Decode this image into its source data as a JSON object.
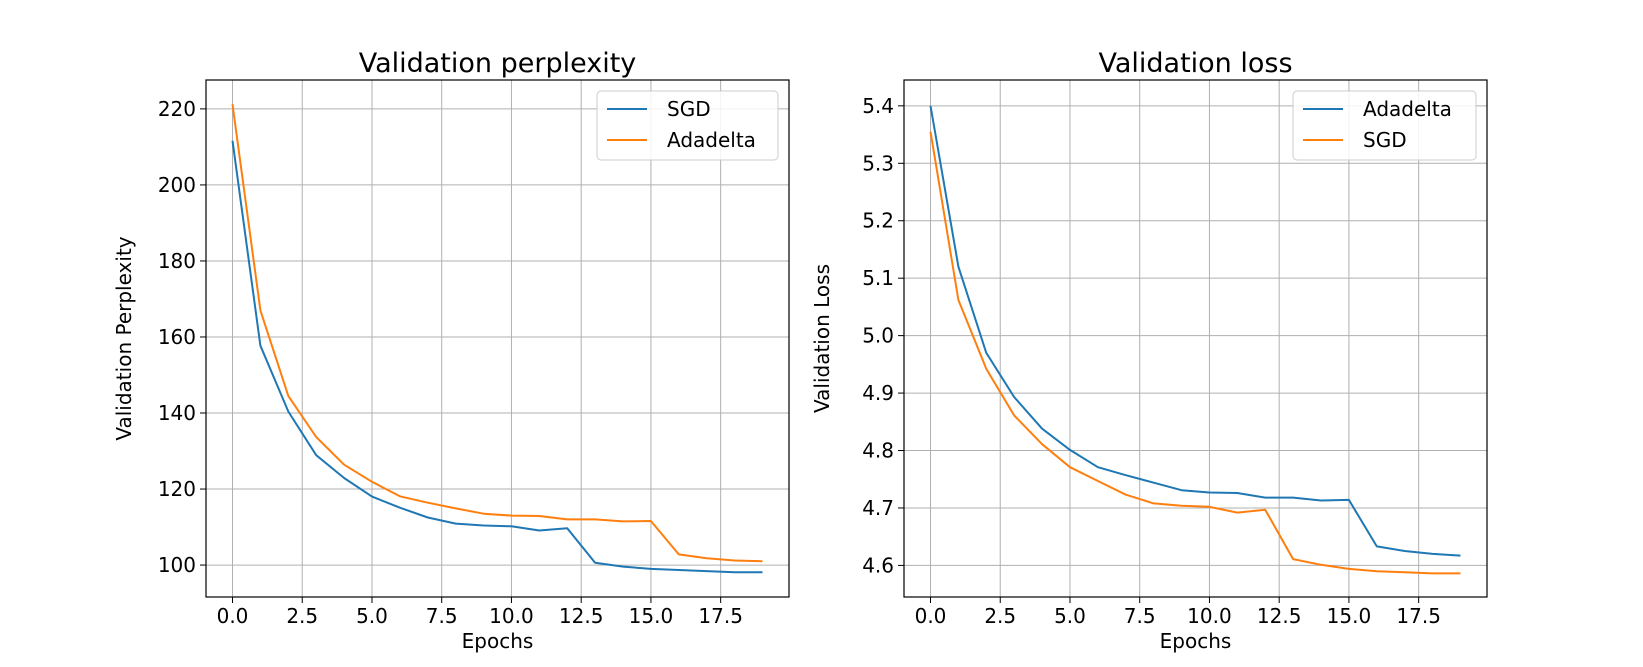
{
  "chart_data": [
    {
      "type": "line",
      "title": "Validation perplexity",
      "xlabel": "Epochs",
      "ylabel": "Validation Perplexity",
      "xlim": [
        -0.95,
        19.95
      ],
      "ylim": [
        91.6,
        227.6
      ],
      "xticks": [
        0.0,
        2.5,
        5.0,
        7.5,
        10.0,
        12.5,
        15.0,
        17.5
      ],
      "xtick_labels": [
        "0.0",
        "2.5",
        "5.0",
        "7.5",
        "10.0",
        "12.5",
        "15.0",
        "17.5"
      ],
      "yticks": [
        100,
        120,
        140,
        160,
        180,
        200,
        220
      ],
      "ytick_labels": [
        "100",
        "120",
        "140",
        "160",
        "180",
        "200",
        "220"
      ],
      "grid": true,
      "legend_position": "top-right",
      "x": [
        0,
        1,
        2,
        3,
        4,
        5,
        6,
        7,
        8,
        9,
        10,
        11,
        12,
        13,
        14,
        15,
        16,
        17,
        18,
        19
      ],
      "series": [
        {
          "name": "SGD",
          "color": "#1f77b4",
          "values": [
            211.6,
            157.7,
            140.4,
            128.9,
            122.9,
            118.0,
            115.1,
            112.5,
            110.9,
            110.4,
            110.2,
            109.1,
            109.7,
            100.6,
            99.6,
            99.0,
            98.7,
            98.4,
            98.1,
            98.1
          ]
        },
        {
          "name": "Adadelta",
          "color": "#ff7f0e",
          "values": [
            221.2,
            167.0,
            144.5,
            133.7,
            126.4,
            121.9,
            118.1,
            116.4,
            114.9,
            113.5,
            113.0,
            112.9,
            112.0,
            112.0,
            111.5,
            111.6,
            102.8,
            101.8,
            101.2,
            101.0
          ]
        }
      ]
    },
    {
      "type": "line",
      "title": "Validation loss",
      "xlabel": "Epochs",
      "ylabel": "Validation Loss",
      "xlim": [
        -0.95,
        19.95
      ],
      "ylim": [
        4.545,
        5.445
      ],
      "xticks": [
        0.0,
        2.5,
        5.0,
        7.5,
        10.0,
        12.5,
        15.0,
        17.5
      ],
      "xtick_labels": [
        "0.0",
        "2.5",
        "5.0",
        "7.5",
        "10.0",
        "12.5",
        "15.0",
        "17.5"
      ],
      "yticks": [
        4.6,
        4.7,
        4.8,
        4.9,
        5.0,
        5.1,
        5.2,
        5.3,
        5.4
      ],
      "ytick_labels": [
        "4.6",
        "4.7",
        "4.8",
        "4.9",
        "5.0",
        "5.1",
        "5.2",
        "5.3",
        "5.4"
      ],
      "grid": true,
      "legend_position": "top-right",
      "x": [
        0,
        1,
        2,
        3,
        4,
        5,
        6,
        7,
        8,
        9,
        10,
        11,
        12,
        13,
        14,
        15,
        16,
        17,
        18,
        19
      ],
      "series": [
        {
          "name": "Adadelta",
          "color": "#1f77b4",
          "values": [
            5.4,
            5.12,
            4.97,
            4.893,
            4.838,
            4.801,
            4.771,
            4.757,
            4.744,
            4.731,
            4.727,
            4.726,
            4.718,
            4.718,
            4.713,
            4.714,
            4.633,
            4.625,
            4.62,
            4.617
          ]
        },
        {
          "name": "SGD",
          "color": "#ff7f0e",
          "values": [
            5.355,
            5.062,
            4.942,
            4.861,
            4.811,
            4.771,
            4.747,
            4.723,
            4.708,
            4.704,
            4.702,
            4.692,
            4.697,
            4.611,
            4.601,
            4.594,
            4.59,
            4.588,
            4.586,
            4.586
          ]
        }
      ]
    }
  ]
}
